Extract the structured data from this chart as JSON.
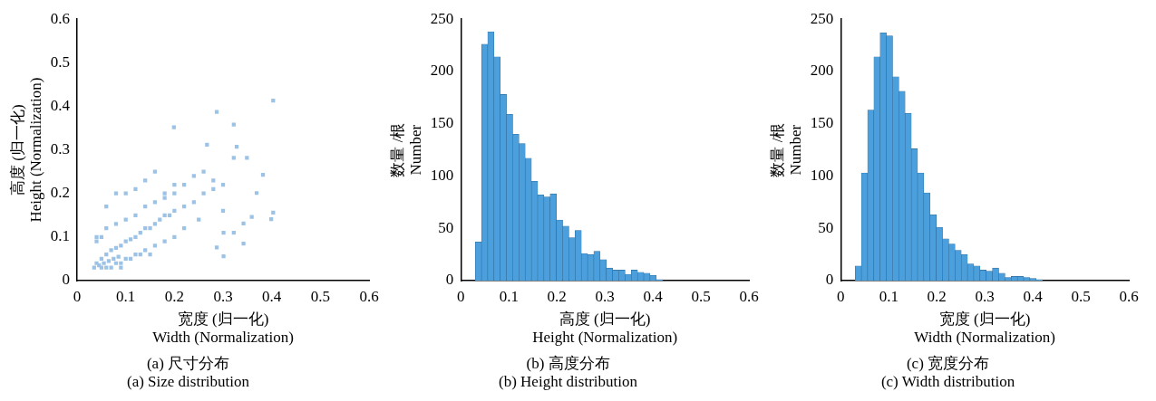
{
  "chart_data": [
    {
      "type": "scatter",
      "title": "(a) 尺寸分布\n(a) Size distribution",
      "xlabel": "宽度 (归一化)\nWidth (Normalization)",
      "ylabel": "高度 (归一化)\nHeight (Normalization)",
      "color": "#9cc3e6",
      "marker": "square",
      "xlim": [
        0,
        0.6
      ],
      "ylim": [
        0,
        0.6
      ],
      "xticks": [
        0,
        0.1,
        0.2,
        0.3,
        0.4,
        0.5,
        0.6
      ],
      "yticks": [
        0,
        0.1,
        0.2,
        0.3,
        0.4,
        0.5,
        0.6
      ],
      "x": [
        0.403,
        0.287,
        0.199,
        0.322,
        0.267,
        0.328,
        0.322,
        0.349,
        0.382,
        0.369,
        0.359,
        0.399,
        0.403,
        0.342,
        0.342,
        0.301,
        0.287,
        0.322,
        0.301,
        0.04,
        0.05,
        0.06,
        0.07,
        0.08,
        0.09,
        0.1,
        0.11,
        0.12,
        0.13,
        0.14,
        0.15,
        0.16,
        0.17,
        0.18,
        0.19,
        0.2,
        0.22,
        0.24,
        0.26,
        0.28,
        0.3,
        0.04,
        0.05,
        0.06,
        0.08,
        0.1,
        0.12,
        0.14,
        0.16,
        0.18,
        0.2,
        0.22,
        0.24,
        0.26,
        0.28,
        0.06,
        0.08,
        0.1,
        0.12,
        0.14,
        0.16,
        0.18,
        0.2,
        0.22,
        0.04,
        0.06,
        0.08,
        0.1,
        0.12,
        0.14,
        0.16,
        0.18,
        0.2,
        0.25,
        0.3,
        0.05,
        0.07,
        0.09,
        0.11,
        0.13,
        0.15,
        0.035,
        0.045,
        0.055,
        0.065,
        0.075,
        0.085,
        0.09
      ],
      "values": [
        0.413,
        0.387,
        0.352,
        0.358,
        0.312,
        0.307,
        0.282,
        0.282,
        0.243,
        0.201,
        0.146,
        0.141,
        0.156,
        0.131,
        0.085,
        0.056,
        0.076,
        0.11,
        0.11,
        0.04,
        0.05,
        0.06,
        0.07,
        0.075,
        0.08,
        0.09,
        0.095,
        0.1,
        0.11,
        0.12,
        0.12,
        0.13,
        0.14,
        0.15,
        0.15,
        0.16,
        0.17,
        0.18,
        0.2,
        0.21,
        0.22,
        0.09,
        0.1,
        0.12,
        0.13,
        0.14,
        0.15,
        0.17,
        0.18,
        0.19,
        0.2,
        0.22,
        0.24,
        0.25,
        0.23,
        0.03,
        0.04,
        0.05,
        0.06,
        0.07,
        0.08,
        0.09,
        0.1,
        0.12,
        0.1,
        0.17,
        0.2,
        0.2,
        0.21,
        0.23,
        0.25,
        0.2,
        0.22,
        0.14,
        0.16,
        0.03,
        0.03,
        0.04,
        0.05,
        0.06,
        0.06,
        0.03,
        0.035,
        0.04,
        0.045,
        0.05,
        0.055,
        0.03
      ]
    },
    {
      "type": "histogram",
      "title": "(b) 高度分布\n(b) Height distribution",
      "xlabel": "高度 (归一化)\nHeight (Normalization)",
      "ylabel": "数量 /根\nNumber",
      "color": "#4a9fdc",
      "xlim": [
        0,
        0.6
      ],
      "ylim": [
        0,
        250
      ],
      "xticks": [
        0,
        0.1,
        0.2,
        0.3,
        0.4,
        0.5,
        0.6
      ],
      "yticks": [
        0,
        50,
        100,
        150,
        200,
        250
      ],
      "bins": [
        0.03,
        0.043,
        0.056,
        0.069,
        0.082,
        0.095,
        0.108,
        0.121,
        0.134,
        0.147,
        0.16,
        0.173,
        0.186,
        0.199,
        0.212,
        0.225,
        0.238,
        0.251,
        0.264,
        0.277,
        0.29,
        0.303,
        0.316,
        0.329,
        0.342,
        0.355,
        0.368,
        0.381,
        0.394,
        0.407,
        0.42
      ],
      "values": [
        37,
        226,
        238,
        214,
        178,
        159,
        140,
        131,
        117,
        95,
        82,
        80,
        83,
        58,
        52,
        41,
        48,
        26,
        25,
        28,
        20,
        12,
        10,
        10,
        6,
        10,
        8,
        7,
        5,
        1
      ]
    },
    {
      "type": "histogram",
      "title": "(c) 宽度分布\n(c) Width distribution",
      "xlabel": "宽度 (归一化)\nWidth (Normalization)",
      "ylabel": "数量 /根\nNumber",
      "color": "#4a9fdc",
      "xlim": [
        0,
        0.6
      ],
      "ylim": [
        0,
        250
      ],
      "xticks": [
        0,
        0.1,
        0.2,
        0.3,
        0.4,
        0.5,
        0.6
      ],
      "yticks": [
        0,
        50,
        100,
        150,
        200,
        250
      ],
      "bins": [
        0.03,
        0.043,
        0.056,
        0.069,
        0.082,
        0.095,
        0.108,
        0.121,
        0.134,
        0.147,
        0.16,
        0.173,
        0.186,
        0.199,
        0.212,
        0.225,
        0.238,
        0.251,
        0.264,
        0.277,
        0.29,
        0.303,
        0.316,
        0.329,
        0.342,
        0.355,
        0.368,
        0.381,
        0.394,
        0.407,
        0.42
      ],
      "values": [
        14,
        103,
        163,
        214,
        237,
        234,
        195,
        181,
        160,
        126,
        103,
        84,
        63,
        51,
        40,
        35,
        29,
        25,
        16,
        14,
        10,
        9,
        12,
        7,
        3,
        4,
        4,
        3,
        2,
        1
      ]
    }
  ]
}
